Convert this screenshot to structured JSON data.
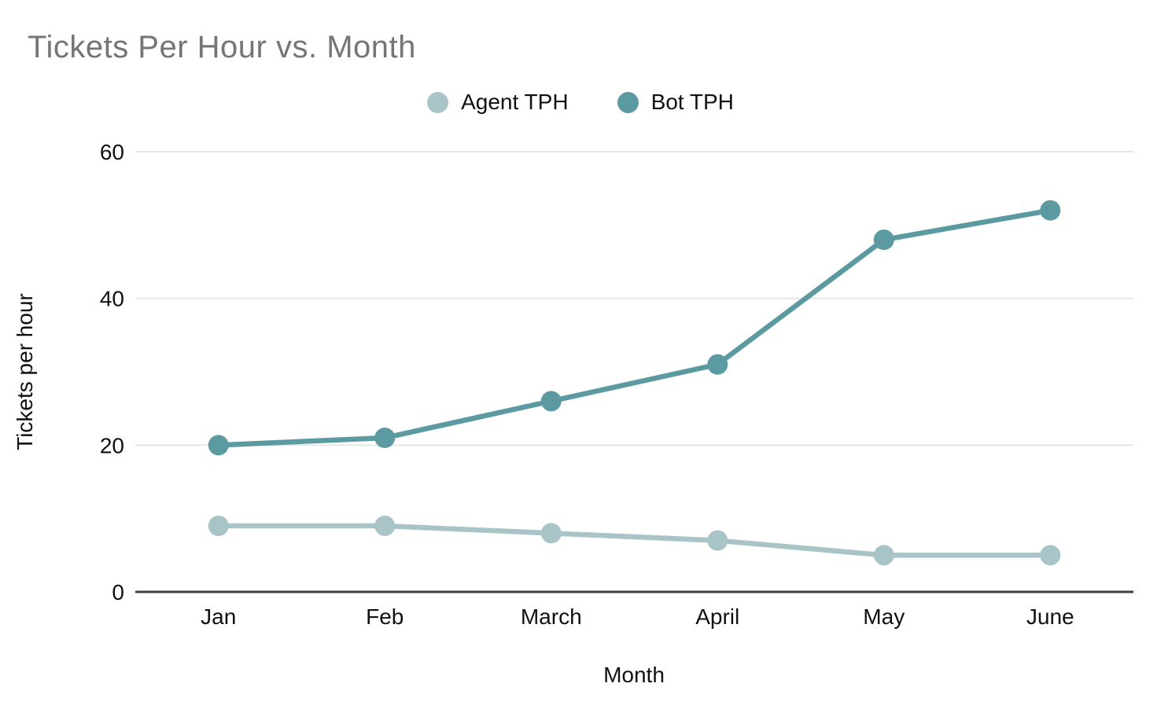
{
  "chart_data": {
    "type": "line",
    "title": "Tickets Per Hour vs. Month",
    "title_color": "#757575",
    "xlabel": "Month",
    "ylabel": "Tickets per hour",
    "categories": [
      "Jan",
      "Feb",
      "March",
      "April",
      "May",
      "June"
    ],
    "series": [
      {
        "name": "Agent TPH",
        "color": "#a9c4c7",
        "values": [
          9,
          9,
          8,
          7,
          5,
          5
        ]
      },
      {
        "name": "Bot TPH",
        "color": "#5a9aa0",
        "values": [
          20,
          21,
          26,
          31,
          48,
          52
        ]
      }
    ],
    "ylim": [
      0,
      60
    ],
    "yticks": [
      0,
      20,
      40,
      60
    ],
    "grid": true,
    "legend_position": "top",
    "gridline_color": "#e6e6e6",
    "axis_line_color": "#424242",
    "axis_text_color": "#111111",
    "background_color": "#ffffff"
  }
}
